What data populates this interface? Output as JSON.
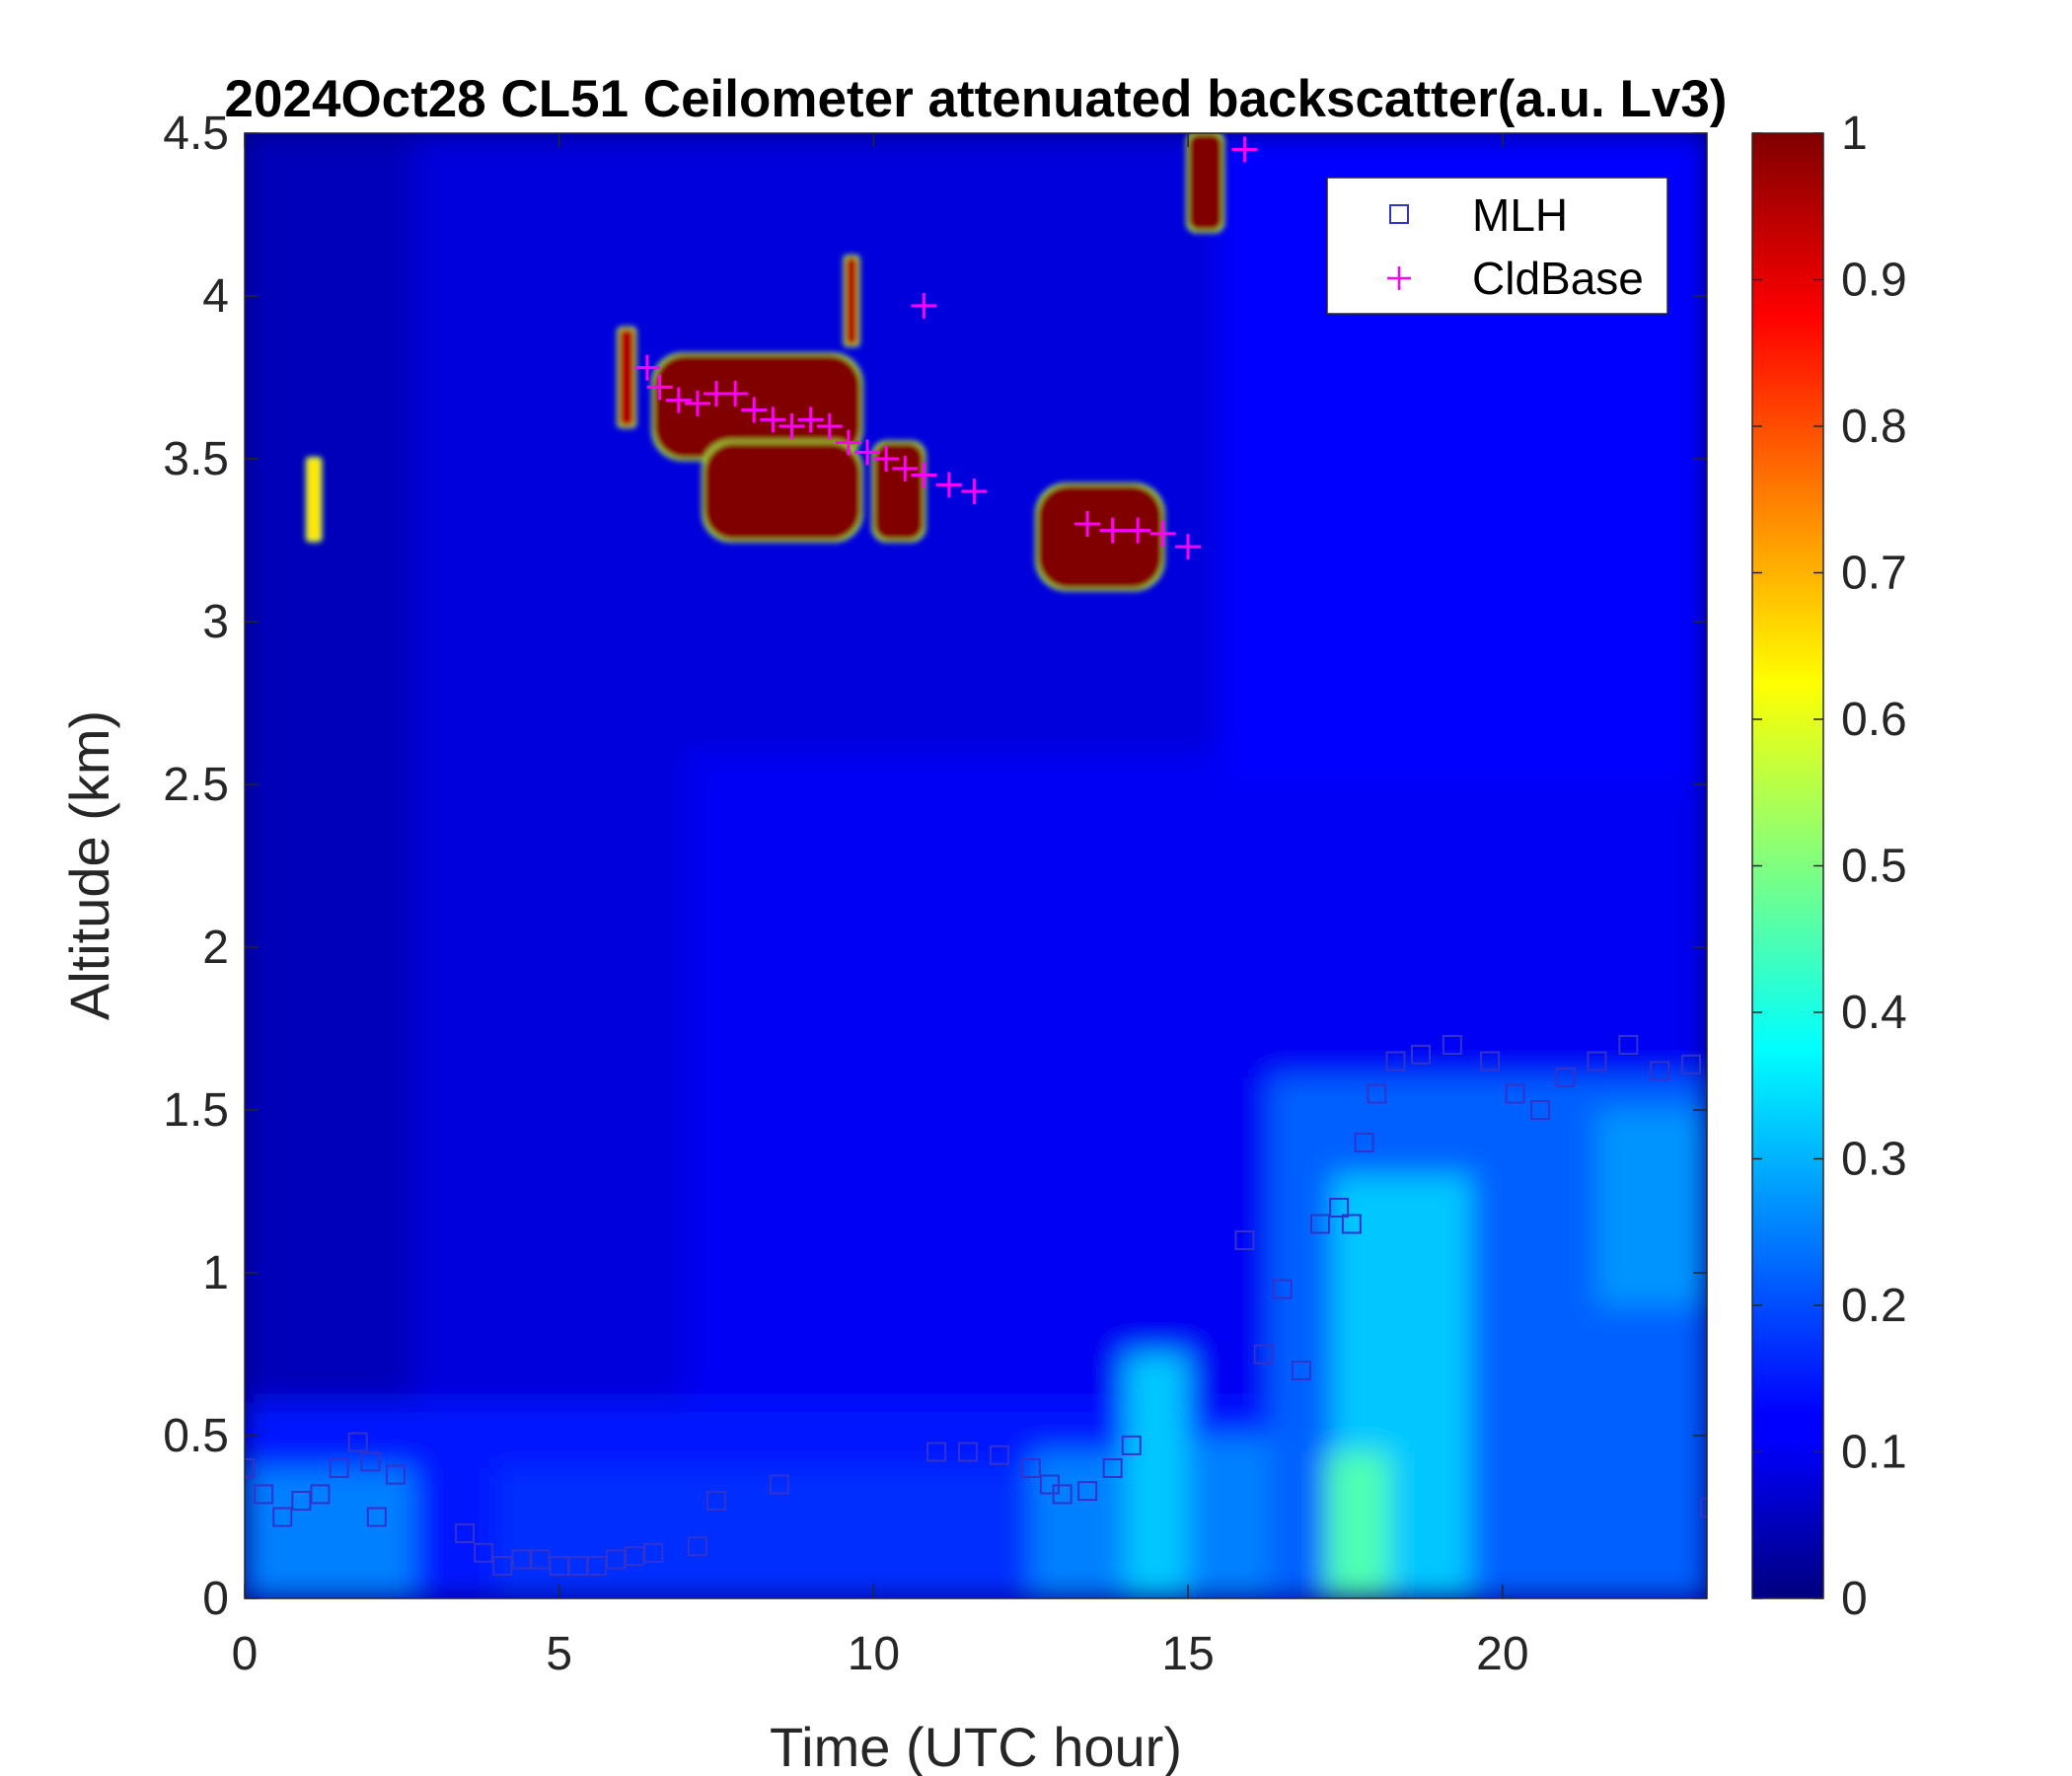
{
  "chart_data": {
    "type": "heatmap",
    "title": "2024Oct28 CL51 Ceilometer attenuated backscatter(a.u. Lv3)",
    "xlabel": "Time (UTC hour)",
    "ylabel": "Altitude (km)",
    "xlim": [
      0,
      23.25
    ],
    "ylim": [
      0,
      4.5
    ],
    "x_ticks": [
      0,
      5,
      10,
      15,
      20
    ],
    "x_tick_labels": [
      "0",
      "5",
      "10",
      "15",
      "20"
    ],
    "y_ticks": [
      0,
      0.5,
      1,
      1.5,
      2,
      2.5,
      3,
      3.5,
      4,
      4.5
    ],
    "y_tick_labels": [
      "0",
      "0.5",
      "1",
      "1.5",
      "2",
      "2.5",
      "3",
      "3.5",
      "4",
      "4.5"
    ],
    "colorbar": {
      "colormap": "jet",
      "clim": [
        0,
        1
      ],
      "ticks": [
        0,
        0.1,
        0.2,
        0.3,
        0.4,
        0.5,
        0.6,
        0.7,
        0.8,
        0.9,
        1
      ],
      "tick_labels": [
        "0",
        "0.1",
        "0.2",
        "0.3",
        "0.4",
        "0.5",
        "0.6",
        "0.7",
        "0.8",
        "0.9",
        "1"
      ]
    },
    "legend": {
      "placement": "top-right",
      "entries": [
        {
          "label": "MLH",
          "marker": "square",
          "color": "#3333cc"
        },
        {
          "label": "CldBase",
          "marker": "plus",
          "color": "#ff00ff"
        }
      ]
    },
    "background_layers": [
      {
        "x": [
          0,
          23.25
        ],
        "y": [
          0,
          4.5
        ],
        "value": 0.05
      },
      {
        "x": [
          2.7,
          23.25
        ],
        "y": [
          0,
          4.5
        ],
        "value": 0.08
      },
      {
        "x": [
          7,
          23.25
        ],
        "y": [
          0,
          2.6
        ],
        "value": 0.1
      },
      {
        "x": [
          15.5,
          23.25
        ],
        "y": [
          2.5,
          4.5
        ],
        "value": 0.12
      },
      {
        "x": [
          0,
          23.25
        ],
        "y": [
          0,
          0.6
        ],
        "value": 0.15
      },
      {
        "x": [
          0,
          2.7
        ],
        "y": [
          0,
          0.4
        ],
        "value": 0.25
      },
      {
        "x": [
          4,
          12.5
        ],
        "y": [
          0,
          0.4
        ],
        "value": 0.17
      },
      {
        "x": [
          12.5,
          14
        ],
        "y": [
          0,
          0.45
        ],
        "value": 0.25
      },
      {
        "x": [
          14,
          15
        ],
        "y": [
          0,
          0.75
        ],
        "value": 0.32
      },
      {
        "x": [
          15,
          16.3
        ],
        "y": [
          0,
          0.5
        ],
        "value": 0.25
      },
      {
        "x": [
          16.3,
          23.25
        ],
        "y": [
          0,
          1.6
        ],
        "value": 0.22
      },
      {
        "x": [
          17.3,
          19.5
        ],
        "y": [
          0,
          1.3
        ],
        "value": 0.32
      },
      {
        "x": [
          17.2,
          18.2
        ],
        "y": [
          0,
          0.45
        ],
        "value": 0.45
      },
      {
        "x": [
          21.5,
          23.25
        ],
        "y": [
          0.9,
          1.5
        ],
        "value": 0.27
      }
    ],
    "cloud_layers": [
      {
        "x": [
          1.0,
          1.2
        ],
        "y": [
          3.25,
          3.5
        ],
        "value": 0.65
      },
      {
        "x": [
          5.95,
          6.2
        ],
        "y": [
          3.6,
          3.9
        ],
        "value": 0.95
      },
      {
        "x": [
          6.5,
          9.8
        ],
        "y": [
          3.5,
          3.82
        ],
        "value": 1.0
      },
      {
        "x": [
          7.3,
          9.8
        ],
        "y": [
          3.25,
          3.55
        ],
        "value": 1.0
      },
      {
        "x": [
          9.55,
          9.75
        ],
        "y": [
          3.85,
          4.12
        ],
        "value": 0.95
      },
      {
        "x": [
          10.0,
          10.8
        ],
        "y": [
          3.25,
          3.55
        ],
        "value": 1.0
      },
      {
        "x": [
          12.6,
          14.6
        ],
        "y": [
          3.1,
          3.42
        ],
        "value": 1.0
      },
      {
        "x": [
          15.0,
          15.55
        ],
        "y": [
          4.2,
          4.5
        ],
        "value": 1.0
      }
    ],
    "series": [
      {
        "name": "MLH",
        "marker": "square",
        "x": [
          0.0,
          0.3,
          0.6,
          0.9,
          1.2,
          1.5,
          1.8,
          2.0,
          2.1,
          2.4,
          3.5,
          3.8,
          4.1,
          4.4,
          4.7,
          5.0,
          5.3,
          5.6,
          5.9,
          6.2,
          6.5,
          7.2,
          7.5,
          8.5,
          11.0,
          11.5,
          12.0,
          12.5,
          12.8,
          13.0,
          13.4,
          13.8,
          14.1,
          15.9,
          16.2,
          16.5,
          16.8,
          17.1,
          17.4,
          17.6,
          17.8,
          18.0,
          18.3,
          18.7,
          19.2,
          19.8,
          20.2,
          20.6,
          21.0,
          21.5,
          22.0,
          22.5,
          23.0,
          23.3
        ],
        "y": [
          0.4,
          0.32,
          0.25,
          0.3,
          0.32,
          0.4,
          0.48,
          0.42,
          0.25,
          0.38,
          0.2,
          0.14,
          0.1,
          0.12,
          0.12,
          0.1,
          0.1,
          0.1,
          0.12,
          0.13,
          0.14,
          0.16,
          0.3,
          0.35,
          0.45,
          0.45,
          0.44,
          0.4,
          0.35,
          0.32,
          0.33,
          0.4,
          0.47,
          1.1,
          0.75,
          0.95,
          0.7,
          1.15,
          1.2,
          1.15,
          1.4,
          1.55,
          1.65,
          1.67,
          1.7,
          1.65,
          1.55,
          1.5,
          1.6,
          1.65,
          1.7,
          1.62,
          1.64,
          0.28
        ],
        "color": "#3333cc"
      },
      {
        "name": "CldBase",
        "marker": "plus",
        "x": [
          6.4,
          6.6,
          6.9,
          7.2,
          7.5,
          7.8,
          8.1,
          8.4,
          8.7,
          9.0,
          9.3,
          9.6,
          9.9,
          10.2,
          10.5,
          10.8,
          11.2,
          11.6,
          10.8,
          13.4,
          13.8,
          14.2,
          14.6,
          15.0,
          15.9
        ],
        "y": [
          3.78,
          3.72,
          3.68,
          3.67,
          3.7,
          3.7,
          3.65,
          3.62,
          3.6,
          3.62,
          3.6,
          3.55,
          3.52,
          3.5,
          3.47,
          3.45,
          3.42,
          3.4,
          3.97,
          3.3,
          3.28,
          3.28,
          3.27,
          3.23,
          4.45
        ],
        "color": "#ff00ff"
      }
    ]
  }
}
